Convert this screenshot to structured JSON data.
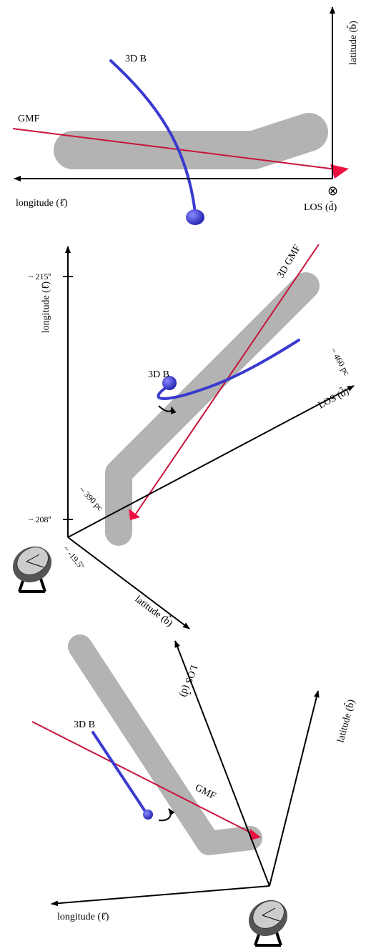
{
  "panels": [
    {
      "latitude_label": "latitude (b̂)",
      "b_label": "3D B",
      "gmf_label": "GMF",
      "longitude_label": "longitude (ℓ̂)",
      "los_symbol": "⊗",
      "los_label": "LOS (d̂)"
    },
    {
      "longitude_tick_top": "~ 215º",
      "longitude_label": "longitude (ℓ̂)",
      "gmf_label": "3D GMF",
      "los_tick": "~ 460 pc",
      "los_label": "LOS (d̂)",
      "b_label": "3D B",
      "near_tick": "~ 390 pc",
      "longitude_tick_bottom": "~ 208º",
      "latitude_tick": "~ -19.5º",
      "latitude_label": "latitude (b̂)"
    },
    {
      "los_label": "LOS (d̂)",
      "latitude_label": "latitude (b̂)",
      "b_label": "3D B",
      "gmf_label": "GMF",
      "longitude_label": "longitude (ℓ̂)"
    }
  ]
}
